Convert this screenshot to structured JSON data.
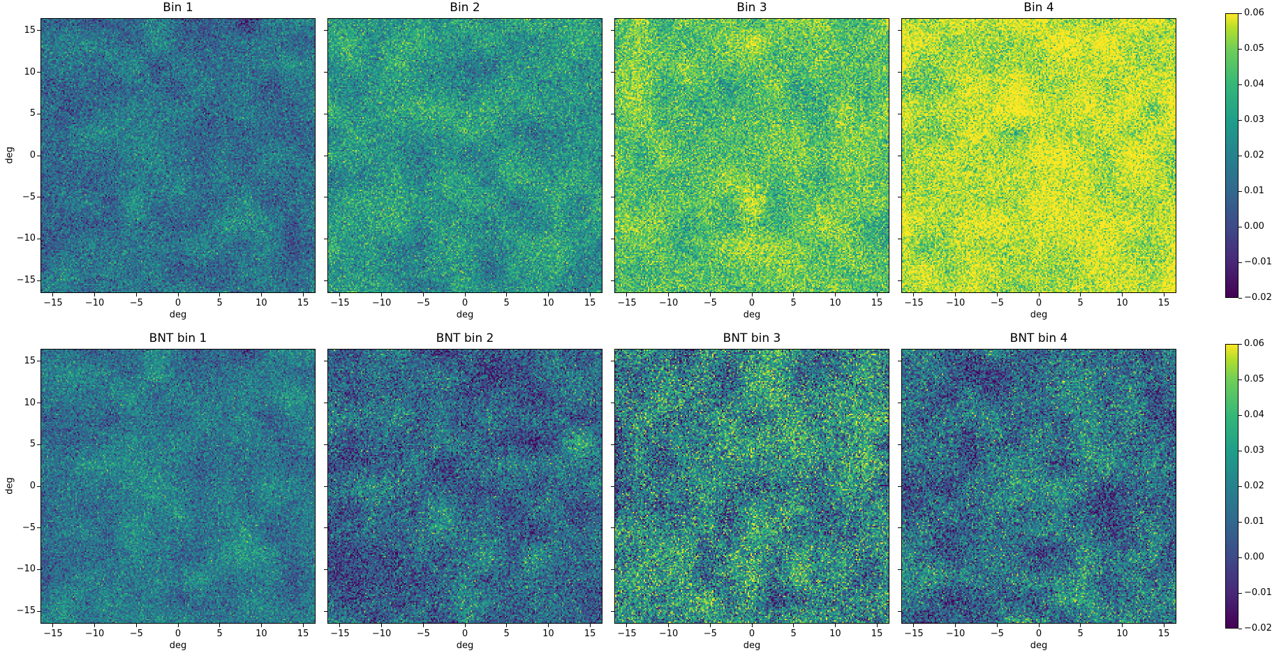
{
  "chart_data": [
    {
      "type": "heatmap",
      "title": "Bin 1",
      "xlabel": "deg",
      "ylabel": "deg",
      "xlim": [
        -16.5,
        16.5
      ],
      "ylim": [
        -16.5,
        16.5
      ],
      "clim": [
        -0.02,
        0.06
      ],
      "mean_value": 0.01,
      "noise_std": 0.011,
      "xticks": [
        "−15",
        "−10",
        "−5",
        "0",
        "5",
        "10",
        "15"
      ],
      "yticks": [
        "−15",
        "−10",
        "−5",
        "0",
        "5",
        "10",
        "15"
      ]
    },
    {
      "type": "heatmap",
      "title": "Bin 2",
      "xlabel": "deg",
      "ylabel": "",
      "xlim": [
        -16.5,
        16.5
      ],
      "ylim": [
        -16.5,
        16.5
      ],
      "clim": [
        -0.02,
        0.06
      ],
      "mean_value": 0.022,
      "noise_std": 0.012,
      "xticks": [
        "−15",
        "−10",
        "−5",
        "0",
        "5",
        "10",
        "15"
      ],
      "yticks": []
    },
    {
      "type": "heatmap",
      "title": "Bin 3",
      "xlabel": "deg",
      "ylabel": "",
      "xlim": [
        -16.5,
        16.5
      ],
      "ylim": [
        -16.5,
        16.5
      ],
      "clim": [
        -0.02,
        0.06
      ],
      "mean_value": 0.038,
      "noise_std": 0.013,
      "xticks": [
        "−15",
        "−10",
        "−5",
        "0",
        "5",
        "10",
        "15"
      ],
      "yticks": []
    },
    {
      "type": "heatmap",
      "title": "Bin 4",
      "xlabel": "deg",
      "ylabel": "",
      "xlim": [
        -16.5,
        16.5
      ],
      "ylim": [
        -16.5,
        16.5
      ],
      "clim": [
        -0.02,
        0.06
      ],
      "mean_value": 0.053,
      "noise_std": 0.013,
      "xticks": [
        "−15",
        "−10",
        "−5",
        "0",
        "5",
        "10",
        "15"
      ],
      "yticks": []
    },
    {
      "type": "heatmap",
      "title": "BNT bin 1",
      "xlabel": "deg",
      "ylabel": "deg",
      "xlim": [
        -16.5,
        16.5
      ],
      "ylim": [
        -16.5,
        16.5
      ],
      "clim": [
        -0.02,
        0.06
      ],
      "mean_value": 0.012,
      "noise_std": 0.011,
      "xticks": [
        "−15",
        "−10",
        "−5",
        "0",
        "5",
        "10",
        "15"
      ],
      "yticks": [
        "−15",
        "−10",
        "−5",
        "0",
        "5",
        "10",
        "15"
      ]
    },
    {
      "type": "heatmap",
      "title": "BNT bin 2",
      "xlabel": "deg",
      "ylabel": "",
      "xlim": [
        -16.5,
        16.5
      ],
      "ylim": [
        -16.5,
        16.5
      ],
      "clim": [
        -0.02,
        0.06
      ],
      "mean_value": 0.008,
      "noise_std": 0.015,
      "xticks": [
        "−15",
        "−10",
        "−5",
        "0",
        "5",
        "10",
        "15"
      ],
      "yticks": []
    },
    {
      "type": "heatmap",
      "title": "BNT bin 3",
      "xlabel": "deg",
      "ylabel": "",
      "xlim": [
        -16.5,
        16.5
      ],
      "ylim": [
        -16.5,
        16.5
      ],
      "clim": [
        -0.02,
        0.06
      ],
      "mean_value": 0.018,
      "noise_std": 0.02,
      "xticks": [
        "−15",
        "−10",
        "−5",
        "0",
        "5",
        "10",
        "15"
      ],
      "yticks": []
    },
    {
      "type": "heatmap",
      "title": "BNT bin 4",
      "xlabel": "deg",
      "ylabel": "",
      "xlim": [
        -16.5,
        16.5
      ],
      "ylim": [
        -16.5,
        16.5
      ],
      "clim": [
        -0.02,
        0.06
      ],
      "mean_value": 0.01,
      "noise_std": 0.017,
      "xticks": [
        "−15",
        "−10",
        "−5",
        "0",
        "5",
        "10",
        "15"
      ],
      "yticks": []
    }
  ],
  "colorbars": [
    {
      "ticks": [
        "0.06",
        "0.05",
        "0.04",
        "0.03",
        "0.02",
        "0.01",
        "0.00",
        "−0.01",
        "−0.02"
      ],
      "range": [
        -0.02,
        0.06
      ]
    },
    {
      "ticks": [
        "0.06",
        "0.05",
        "0.04",
        "0.03",
        "0.02",
        "0.01",
        "0.00",
        "−0.01",
        "−0.02"
      ],
      "range": [
        -0.02,
        0.06
      ]
    }
  ],
  "colormap": "viridis"
}
